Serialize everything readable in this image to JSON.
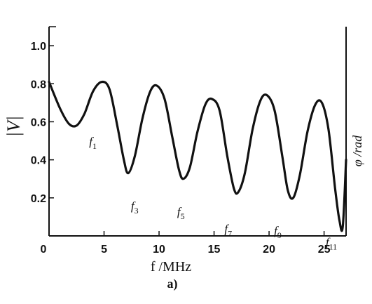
{
  "chart_data": {
    "type": "line",
    "xlabel": "f /MHz",
    "ylabel": "|V|",
    "right_label": "φ /rad",
    "caption": "a)",
    "xlim": [
      0,
      27
    ],
    "ylim": [
      0,
      1.1
    ],
    "xticks": [
      0,
      5,
      10,
      15,
      20,
      25
    ],
    "yticks": [
      0.2,
      0.4,
      0.6,
      0.8,
      1.0
    ],
    "xtick_labels": [
      "0",
      "5",
      "10",
      "15",
      "20",
      "25"
    ],
    "ytick_labels": [
      "0.2",
      "0.4",
      "0.6",
      "0.8",
      "1.0"
    ],
    "grid": false,
    "series": [
      {
        "x": [
          0.0,
          1.0,
          1.8,
          2.5,
          3.2,
          4.0,
          4.8,
          5.5,
          6.2,
          6.8,
          7.2,
          7.8,
          8.5,
          9.2,
          9.8,
          10.5,
          11.2,
          11.8,
          12.2,
          12.8,
          13.5,
          14.2,
          14.8,
          15.5,
          16.2,
          16.8,
          17.2,
          17.8,
          18.5,
          19.2,
          19.8,
          20.5,
          21.2,
          21.7,
          22.2,
          22.8,
          23.5,
          24.2,
          24.8,
          25.4,
          26.0,
          26.4,
          26.7,
          27.0
        ],
        "y": [
          0.81,
          0.67,
          0.59,
          0.58,
          0.64,
          0.76,
          0.81,
          0.77,
          0.58,
          0.4,
          0.33,
          0.42,
          0.62,
          0.76,
          0.79,
          0.72,
          0.52,
          0.35,
          0.3,
          0.36,
          0.55,
          0.69,
          0.72,
          0.66,
          0.42,
          0.25,
          0.23,
          0.33,
          0.56,
          0.71,
          0.74,
          0.66,
          0.42,
          0.24,
          0.2,
          0.32,
          0.55,
          0.69,
          0.7,
          0.56,
          0.25,
          0.08,
          0.05,
          0.4
        ]
      }
    ],
    "annotations": [
      {
        "text": "f",
        "sub": "1",
        "x": 2.5,
        "y": 0.58
      },
      {
        "text": "f",
        "sub": "3",
        "x": 6.3,
        "y": 0.24
      },
      {
        "text": "f",
        "sub": "5",
        "x": 10.5,
        "y": 0.21
      },
      {
        "text": "f",
        "sub": "7",
        "x": 14.8,
        "y": 0.12
      },
      {
        "text": "f",
        "sub": "9",
        "x": 19.3,
        "y": 0.11
      },
      {
        "text": "f",
        "sub": "11",
        "x": 24.0,
        "y": 0.05
      }
    ]
  }
}
